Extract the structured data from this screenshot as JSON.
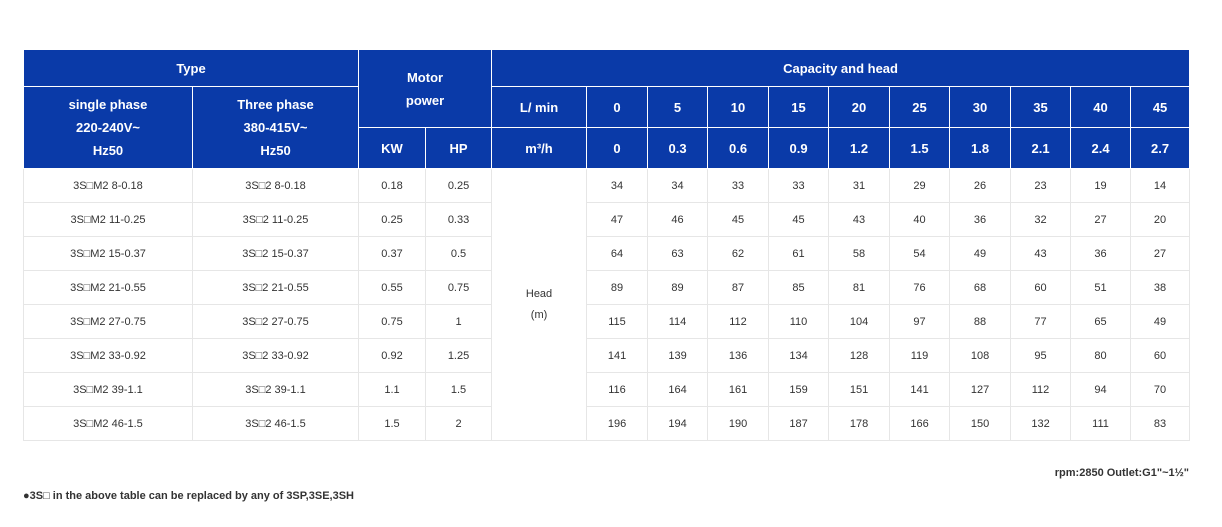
{
  "header": {
    "type_label": "Type",
    "motor_power_label": "Motor\npower",
    "capacity_head_label": "Capacity and head",
    "single_phase_label": "single phase\n220-240V~\nHz50",
    "three_phase_label": "Three phase\n380-415V~\nHz50",
    "kw_label": "KW",
    "hp_label": "HP",
    "lmin_label": "L/ min",
    "m3h_label": "m³/h",
    "lmin_values": [
      "0",
      "5",
      "10",
      "15",
      "20",
      "25",
      "30",
      "35",
      "40",
      "45"
    ],
    "m3h_values": [
      "0",
      "0.3",
      "0.6",
      "0.9",
      "1.2",
      "1.5",
      "1.8",
      "2.1",
      "2.4",
      "2.7"
    ]
  },
  "head_label": "Head\n(m)",
  "rows": [
    {
      "single": "3S□M2 8-0.18",
      "three": "3S□2 8-0.18",
      "kw": "0.18",
      "hp": "0.25",
      "heads": [
        "34",
        "34",
        "33",
        "33",
        "31",
        "29",
        "26",
        "23",
        "19",
        "14"
      ]
    },
    {
      "single": "3S□M2 11-0.25",
      "three": "3S□2 11-0.25",
      "kw": "0.25",
      "hp": "0.33",
      "heads": [
        "47",
        "46",
        "45",
        "45",
        "43",
        "40",
        "36",
        "32",
        "27",
        "20"
      ]
    },
    {
      "single": "3S□M2 15-0.37",
      "three": "3S□2 15-0.37",
      "kw": "0.37",
      "hp": "0.5",
      "heads": [
        "64",
        "63",
        "62",
        "61",
        "58",
        "54",
        "49",
        "43",
        "36",
        "27"
      ]
    },
    {
      "single": "3S□M2 21-0.55",
      "three": "3S□2 21-0.55",
      "kw": "0.55",
      "hp": "0.75",
      "heads": [
        "89",
        "89",
        "87",
        "85",
        "81",
        "76",
        "68",
        "60",
        "51",
        "38"
      ]
    },
    {
      "single": "3S□M2 27-0.75",
      "three": "3S□2 27-0.75",
      "kw": "0.75",
      "hp": "1",
      "heads": [
        "115",
        "114",
        "112",
        "110",
        "104",
        "97",
        "88",
        "77",
        "65",
        "49"
      ]
    },
    {
      "single": "3S□M2 33-0.92",
      "three": "3S□2 33-0.92",
      "kw": "0.92",
      "hp": "1.25",
      "heads": [
        "141",
        "139",
        "136",
        "134",
        "128",
        "119",
        "108",
        "95",
        "80",
        "60"
      ]
    },
    {
      "single": "3S□M2 39-1.1",
      "three": "3S□2 39-1.1",
      "kw": "1.1",
      "hp": "1.5",
      "heads": [
        "116",
        "164",
        "161",
        "159",
        "151",
        "141",
        "127",
        "112",
        "94",
        "70"
      ]
    },
    {
      "single": "3S□M2 46-1.5",
      "three": "3S□2 46-1.5",
      "kw": "1.5",
      "hp": "2",
      "heads": [
        "196",
        "194",
        "190",
        "187",
        "178",
        "166",
        "150",
        "132",
        "111",
        "83"
      ]
    }
  ],
  "rpm_note": "rpm:2850 Outlet:G1\"~1½\"",
  "footnote": "●3S□ in the above table can be replaced by any of 3SP,3SE,3SH",
  "colors": {
    "header_bg": "#0a3aa8",
    "header_text": "#ffffff",
    "grid": "#e6e6e6"
  }
}
